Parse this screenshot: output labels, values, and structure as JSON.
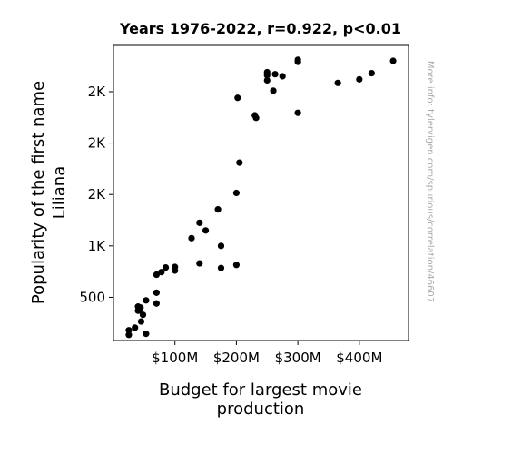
{
  "chart_data": {
    "type": "scatter",
    "title": "Years 1976-2022, r=0.922, p<0.01",
    "xlabel": [
      "Budget for largest movie",
      "production"
    ],
    "ylabel": [
      "Popularity of the first name",
      "Liliana"
    ],
    "x_ticks": [
      {
        "value": 100,
        "label": "$100M"
      },
      {
        "value": 200,
        "label": "$200M"
      },
      {
        "value": 300,
        "label": "$300M"
      },
      {
        "value": 400,
        "label": "$400M"
      }
    ],
    "y_ticks": [
      {
        "value": 500,
        "label": "500"
      },
      {
        "value": 1000,
        "label": "1K"
      },
      {
        "value": 1500,
        "label": "2K"
      },
      {
        "value": 2000,
        "label": "2K"
      },
      {
        "value": 2500,
        "label": "2K"
      }
    ],
    "xlim": [
      0,
      480
    ],
    "ylim": [
      80,
      2950
    ],
    "grid": false,
    "marker_color": "#000000",
    "watermark": "More info: tylervigen.com/spurious/correlation/46607",
    "points": [
      {
        "x": 25,
        "y": 180
      },
      {
        "x": 25,
        "y": 135
      },
      {
        "x": 35,
        "y": 205
      },
      {
        "x": 40,
        "y": 370
      },
      {
        "x": 40,
        "y": 410
      },
      {
        "x": 42,
        "y": 375
      },
      {
        "x": 44,
        "y": 400
      },
      {
        "x": 45,
        "y": 265
      },
      {
        "x": 48,
        "y": 330
      },
      {
        "x": 53,
        "y": 470
      },
      {
        "x": 53,
        "y": 145
      },
      {
        "x": 70,
        "y": 440
      },
      {
        "x": 70,
        "y": 545
      },
      {
        "x": 70,
        "y": 720
      },
      {
        "x": 78,
        "y": 745
      },
      {
        "x": 85,
        "y": 790
      },
      {
        "x": 100,
        "y": 760
      },
      {
        "x": 100,
        "y": 795
      },
      {
        "x": 127,
        "y": 1075
      },
      {
        "x": 140,
        "y": 830
      },
      {
        "x": 140,
        "y": 1225
      },
      {
        "x": 150,
        "y": 1150
      },
      {
        "x": 170,
        "y": 1355
      },
      {
        "x": 175,
        "y": 1000
      },
      {
        "x": 175,
        "y": 785
      },
      {
        "x": 200,
        "y": 815
      },
      {
        "x": 200,
        "y": 1515
      },
      {
        "x": 202,
        "y": 2440
      },
      {
        "x": 205,
        "y": 1810
      },
      {
        "x": 230,
        "y": 2270
      },
      {
        "x": 232,
        "y": 2245
      },
      {
        "x": 250,
        "y": 2610
      },
      {
        "x": 250,
        "y": 2660
      },
      {
        "x": 250,
        "y": 2690
      },
      {
        "x": 260,
        "y": 2510
      },
      {
        "x": 263,
        "y": 2670
      },
      {
        "x": 275,
        "y": 2650
      },
      {
        "x": 300,
        "y": 2790
      },
      {
        "x": 300,
        "y": 2810
      },
      {
        "x": 300,
        "y": 2295
      },
      {
        "x": 365,
        "y": 2585
      },
      {
        "x": 400,
        "y": 2620
      },
      {
        "x": 420,
        "y": 2680
      },
      {
        "x": 455,
        "y": 2800
      }
    ]
  }
}
